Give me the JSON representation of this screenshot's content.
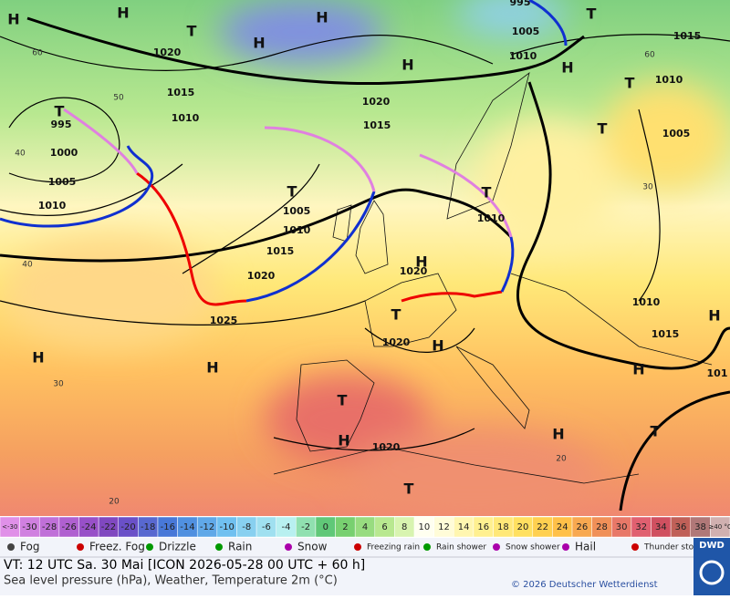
{
  "map": {
    "pressure_centers": [
      "H",
      "H",
      "T",
      "H",
      "H",
      "H",
      "T",
      "H",
      "T",
      "T",
      "T",
      "T",
      "H",
      "T",
      "H",
      "T",
      "H",
      "T",
      "H",
      "H",
      "H",
      "T",
      "H",
      "H",
      "T"
    ],
    "isobar_labels": [
      "1020",
      "1015",
      "1010",
      "995",
      "1000",
      "1005",
      "1010",
      "1020",
      "1015",
      "1005",
      "1010",
      "1015",
      "1020",
      "1025",
      "1020",
      "1020",
      "1020",
      "1010",
      "995",
      "1005",
      "1010",
      "1015",
      "1010",
      "1005",
      "1010",
      "1015",
      "101"
    ],
    "temperature_labels": [
      "60",
      "50",
      "40",
      "30",
      "40",
      "30",
      "20",
      "20",
      "60"
    ]
  },
  "colorbar": {
    "labels": [
      "<-30",
      "-30",
      "-28",
      "-26",
      "-24",
      "-22",
      "-20",
      "-18",
      "-16",
      "-14",
      "-12",
      "-10",
      "-8",
      "-6",
      "-4",
      "-2",
      "0",
      "2",
      "4",
      "6",
      "8",
      "10",
      "12",
      "14",
      "16",
      "18",
      "20",
      "22",
      "24",
      "26",
      "28",
      "30",
      "32",
      "34",
      "36",
      "38",
      "≥40 °C"
    ],
    "colors": [
      "#e090e8",
      "#d080e0",
      "#c070d8",
      "#b060d0",
      "#9850c8",
      "#8048c0",
      "#6a50c8",
      "#5868d0",
      "#4878d8",
      "#5090e0",
      "#60a8e8",
      "#70c0f0",
      "#88d0f0",
      "#a0e0f0",
      "#b8f0f0",
      "#90e0b0",
      "#60c878",
      "#78d070",
      "#98dc80",
      "#b8e890",
      "#d8f4b0",
      "#fffff0",
      "#fffcd8",
      "#fff6b0",
      "#fff090",
      "#ffe878",
      "#ffe060",
      "#ffd050",
      "#ffc048",
      "#f8a850",
      "#f09058",
      "#e87868",
      "#e06070",
      "#d05060",
      "#c06058",
      "#b07878",
      "#d0b0b0"
    ]
  },
  "legend": [
    "Fog",
    "Freez. Fog",
    "Drizzle",
    "Rain",
    "Snow",
    "Freezing rain",
    "Rain shower",
    "Snow shower",
    "Hail",
    "Thunder storm"
  ],
  "footer": {
    "valid_time": "VT: 12 UTC Sa.  30 Mai [ICON 2026-05-28  00 UTC + 60 h]",
    "description": "Sea level pressure (hPa), Weather, Temperature 2m (°C)",
    "copyright": "© 2026 Deutscher Wetterdienst",
    "logo": "DWD"
  }
}
